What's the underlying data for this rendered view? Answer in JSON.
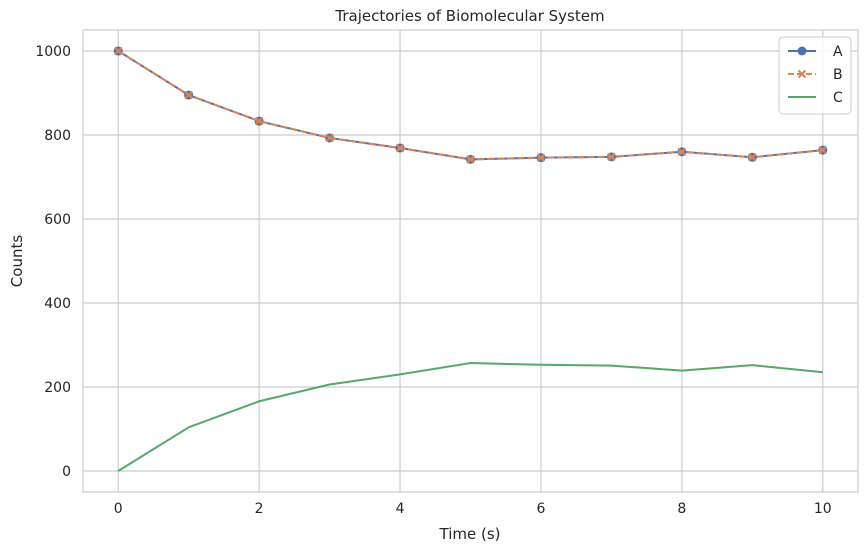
{
  "chart_data": {
    "type": "line",
    "title": "Trajectories of Biomolecular System",
    "xlabel": "Time (s)",
    "ylabel": "Counts",
    "xlim": [
      -0.5,
      10.5
    ],
    "ylim": [
      -50,
      1050
    ],
    "xticks": [
      0,
      2,
      4,
      6,
      8,
      10
    ],
    "yticks": [
      0,
      200,
      400,
      600,
      800,
      1000
    ],
    "grid": true,
    "legend_position": "top-right",
    "x": [
      0,
      1,
      2,
      3,
      4,
      5,
      6,
      7,
      8,
      9,
      10
    ],
    "series": [
      {
        "name": "A",
        "color": "#4c72b0",
        "marker": "circle",
        "line_style": "solid",
        "values": [
          1000,
          895,
          833,
          793,
          769,
          742,
          746,
          748,
          760,
          747,
          764
        ]
      },
      {
        "name": "B",
        "color": "#dd8452",
        "marker": "x",
        "line_style": "dashed",
        "values": [
          1000,
          895,
          833,
          793,
          769,
          742,
          746,
          748,
          760,
          747,
          764
        ]
      },
      {
        "name": "C",
        "color": "#55a868",
        "marker": "none",
        "line_style": "solid",
        "values": [
          0,
          104,
          166,
          206,
          230,
          257,
          253,
          251,
          239,
          252,
          235
        ]
      }
    ]
  }
}
